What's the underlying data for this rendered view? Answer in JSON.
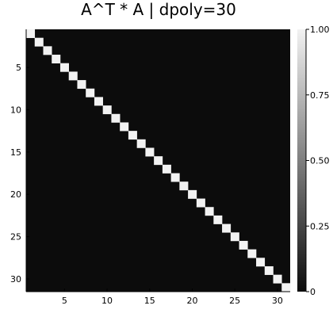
{
  "chart_data": {
    "type": "heatmap",
    "title": "A^T * A | dpoly=30",
    "xlabel": "",
    "ylabel": "",
    "rows": 31,
    "cols": 31,
    "matrix_description": "identity",
    "diagonal_value": 1.0,
    "off_diagonal_value": 0.0,
    "x_ticks": [
      5,
      10,
      15,
      20,
      25,
      30
    ],
    "y_ticks": [
      5,
      10,
      15,
      20,
      25,
      30
    ],
    "colorbar": {
      "min": 0,
      "max": 1,
      "ticks": [
        {
          "value": 0,
          "label": "0"
        },
        {
          "value": 0.25,
          "label": "0.25"
        },
        {
          "value": 0.5,
          "label": "0.50"
        },
        {
          "value": 0.75,
          "label": "0.75"
        },
        {
          "value": 1,
          "label": "1.00"
        }
      ]
    },
    "colors": {
      "low": "#0c0c0c",
      "high": "#f2f2f2"
    },
    "grid": false,
    "legend": "colorbar-right"
  }
}
